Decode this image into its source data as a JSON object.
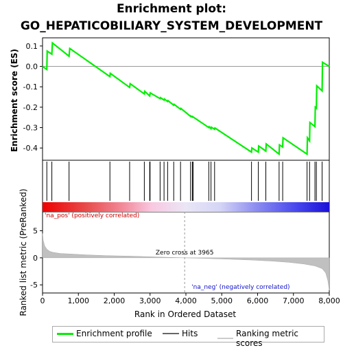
{
  "chart_data": [
    {
      "type": "line",
      "title": "Enrichment plot:",
      "subtitle": "GO_HEPATICOBILIARY_SYSTEM_DEVELOPMENT",
      "ylabel": "Enrichment score (ES)",
      "xlim": [
        0,
        8000
      ],
      "ylim": [
        -0.46,
        0.14
      ],
      "yticks": [
        0.1,
        0.0,
        -0.1,
        -0.2,
        -0.3,
        -0.4
      ],
      "ytick_labels": [
        "0.1",
        "0.0",
        "-0.1",
        "-0.2",
        "-0.3",
        "-0.4"
      ],
      "series": [
        {
          "name": "Enrichment profile",
          "color": "#00ee00",
          "x": [
            0,
            120,
            130,
            260,
            275,
            740,
            760,
            1880,
            1890,
            2430,
            2445,
            2840,
            2850,
            2990,
            3005,
            3280,
            3290,
            3390,
            3400,
            3490,
            3500,
            3660,
            3670,
            3850,
            3860,
            4130,
            4135,
            4180,
            4185,
            4640,
            4650,
            4700,
            4710,
            4800,
            4810,
            5830,
            5840,
            6020,
            6030,
            6230,
            6240,
            6600,
            6610,
            6700,
            6710,
            7380,
            7390,
            7450,
            7460,
            7600,
            7610,
            7640,
            7650,
            7800,
            7810,
            8000
          ],
          "y": [
            0.0,
            -0.015,
            0.075,
            0.06,
            0.115,
            0.05,
            0.088,
            -0.05,
            -0.034,
            -0.103,
            -0.085,
            -0.135,
            -0.122,
            -0.145,
            -0.13,
            -0.158,
            -0.153,
            -0.165,
            -0.16,
            -0.172,
            -0.168,
            -0.19,
            -0.186,
            -0.21,
            -0.206,
            -0.245,
            -0.243,
            -0.248,
            -0.246,
            -0.3,
            -0.296,
            -0.305,
            -0.298,
            -0.308,
            -0.302,
            -0.42,
            -0.4,
            -0.42,
            -0.39,
            -0.415,
            -0.38,
            -0.43,
            -0.385,
            -0.395,
            -0.35,
            -0.43,
            -0.35,
            -0.365,
            -0.275,
            -0.295,
            -0.2,
            -0.205,
            -0.095,
            -0.12,
            0.02,
            0.0
          ]
        }
      ],
      "hits_x": [
        120,
        260,
        740,
        1880,
        2430,
        2840,
        2990,
        3000,
        3280,
        3390,
        3490,
        3660,
        3850,
        4130,
        4180,
        4200,
        4640,
        4700,
        4800,
        5830,
        6020,
        6230,
        6600,
        6700,
        7380,
        7450,
        7600,
        7640,
        7800
      ]
    },
    {
      "type": "area",
      "xlabel": "Rank in Ordered Dataset",
      "ylabel": "Ranked list metric (PreRanked)",
      "xlim": [
        0,
        8000
      ],
      "ylim": [
        -6.5,
        8.5
      ],
      "xticks": [
        0,
        1000,
        2000,
        3000,
        4000,
        5000,
        6000,
        7000,
        8000
      ],
      "xtick_labels": [
        "0",
        "1,000",
        "2,000",
        "3,000",
        "4,000",
        "5,000",
        "6,000",
        "7,000",
        "8,000"
      ],
      "yticks": [
        5,
        0,
        -5
      ],
      "ytick_labels": [
        "5",
        "0",
        "-5"
      ],
      "x": [
        0,
        20,
        60,
        120,
        200,
        300,
        500,
        800,
        1200,
        1800,
        2500,
        3200,
        3965,
        4500,
        5200,
        5800,
        6400,
        6900,
        7300,
        7600,
        7800,
        7900,
        7960,
        8000
      ],
      "y": [
        4.5,
        3.2,
        2.2,
        1.6,
        1.2,
        1.0,
        0.8,
        0.7,
        0.55,
        0.4,
        0.3,
        0.15,
        0.0,
        -0.1,
        -0.25,
        -0.4,
        -0.6,
        -0.85,
        -1.15,
        -1.5,
        -2.0,
        -2.8,
        -4.2,
        -6.0
      ],
      "zero_cross_label": "Zero cross at 3965",
      "zero_cross": 3965,
      "pos_label": "'na_pos' (positively correlated)",
      "neg_label": "'na_neg' (negatively correlated)"
    }
  ],
  "legend": {
    "items": [
      {
        "label": "Enrichment profile",
        "color": "#00ee00"
      },
      {
        "label": "Hits",
        "color": "#666666"
      },
      {
        "label": "Ranking metric scores",
        "color": "#cccccc"
      }
    ]
  }
}
